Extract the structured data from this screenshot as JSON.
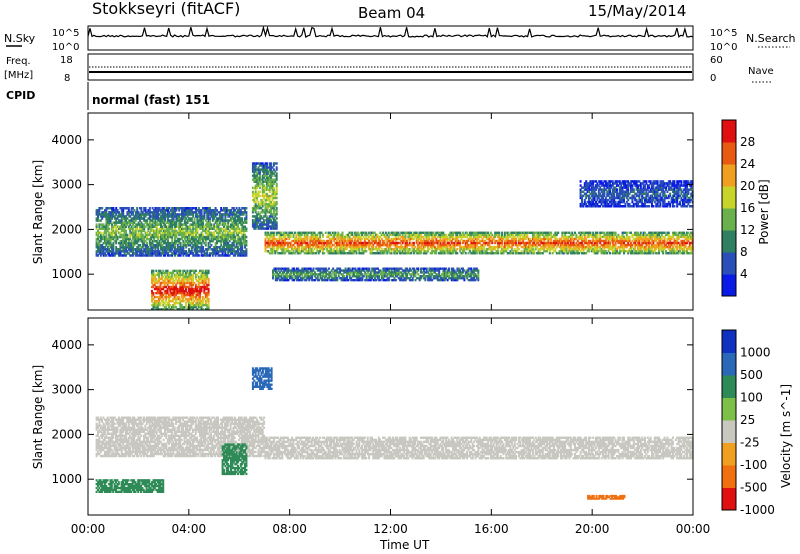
{
  "header": {
    "station": "Stokkseyri (fitACF)",
    "beam": "Beam 04",
    "date": "15/May/2014"
  },
  "top_panels": {
    "nsky_label": "N.Sky",
    "nsearch_label": "N.Search",
    "noise_ticks_left": [
      "10^5",
      "10^0"
    ],
    "noise_ticks_right": [
      "10^5",
      "10^0"
    ],
    "freq_label": "Freq.",
    "freq_unit": "[MHz]",
    "freq_ticks": [
      "18",
      "8"
    ],
    "nave_label": "Nave",
    "nave_ticks": [
      "60",
      "0"
    ],
    "cpid_label": "CPID",
    "cpid_value": "normal (fast) 151"
  },
  "x_axis": {
    "title": "Time UT",
    "ticks": [
      "00:00",
      "04:00",
      "08:00",
      "12:00",
      "16:00",
      "20:00",
      "00:00"
    ]
  },
  "power_colorbar": {
    "label": "Power [dB]",
    "ticks": [
      "28",
      "24",
      "20",
      "16",
      "12",
      "8",
      "4"
    ],
    "colors": [
      "#0a1ae6",
      "#2a4fb8",
      "#2f7f62",
      "#6ab04c",
      "#c8d42a",
      "#f0a020",
      "#e85a10",
      "#e01010"
    ]
  },
  "velocity_colorbar": {
    "label": "Velocity [m s^-1]",
    "ticks": [
      "1000",
      "500",
      "100",
      "25",
      "-25",
      "-100",
      "-500",
      "-1000"
    ],
    "colors": [
      "#1030c0",
      "#2a68b8",
      "#2e8b57",
      "#7cc04a",
      "#c8c8c0",
      "#f0a020",
      "#f07010",
      "#e01010"
    ]
  },
  "chart_data": [
    {
      "type": "heatmap",
      "title": "Power",
      "xlabel": "Time UT",
      "ylabel": "Slant Range [km]",
      "ylim": [
        200,
        4600
      ],
      "y_ticks": [
        1000,
        2000,
        3000,
        4000
      ],
      "clim": [
        0,
        30
      ],
      "colorbar_label": "Power [dB]",
      "x_range_hours": [
        0,
        24
      ],
      "echo_bands": [
        {
          "t_start": 0.3,
          "t_end": 6.3,
          "range_start": 1400,
          "range_end": 2500,
          "power": 12
        },
        {
          "t_start": 7.0,
          "t_end": 24.0,
          "range_start": 1450,
          "range_end": 1950,
          "power": 22
        },
        {
          "t_start": 2.5,
          "t_end": 4.8,
          "range_start": 200,
          "range_end": 1100,
          "power": 24
        },
        {
          "t_start": 7.3,
          "t_end": 15.5,
          "range_start": 850,
          "range_end": 1150,
          "power": 10
        },
        {
          "t_start": 19.5,
          "t_end": 24.0,
          "range_start": 2500,
          "range_end": 3100,
          "power": 6
        },
        {
          "t_start": 6.5,
          "t_end": 7.5,
          "range_start": 2000,
          "range_end": 3500,
          "power": 14
        }
      ]
    },
    {
      "type": "heatmap",
      "title": "Velocity",
      "xlabel": "Time UT",
      "ylabel": "Slant Range [km]",
      "ylim": [
        200,
        4600
      ],
      "y_ticks": [
        1000,
        2000,
        3000,
        4000
      ],
      "clim": [
        -1000,
        1000
      ],
      "colorbar_label": "Velocity [m s^-1]",
      "x_range_hours": [
        0,
        24
      ],
      "echo_bands": [
        {
          "t_start": 0.3,
          "t_end": 7.0,
          "range_start": 1500,
          "range_end": 2400,
          "velocity": 0
        },
        {
          "t_start": 7.0,
          "t_end": 24.0,
          "range_start": 1450,
          "range_end": 1950,
          "velocity": 0
        },
        {
          "t_start": 5.3,
          "t_end": 6.3,
          "range_start": 1100,
          "range_end": 1800,
          "velocity": 300
        },
        {
          "t_start": 6.5,
          "t_end": 7.3,
          "range_start": 3000,
          "range_end": 3500,
          "velocity": 800
        },
        {
          "t_start": 0.3,
          "t_end": 3.0,
          "range_start": 700,
          "range_end": 1000,
          "velocity": 150
        },
        {
          "t_start": 19.8,
          "t_end": 21.3,
          "range_start": 550,
          "range_end": 650,
          "velocity": -300
        }
      ]
    }
  ]
}
